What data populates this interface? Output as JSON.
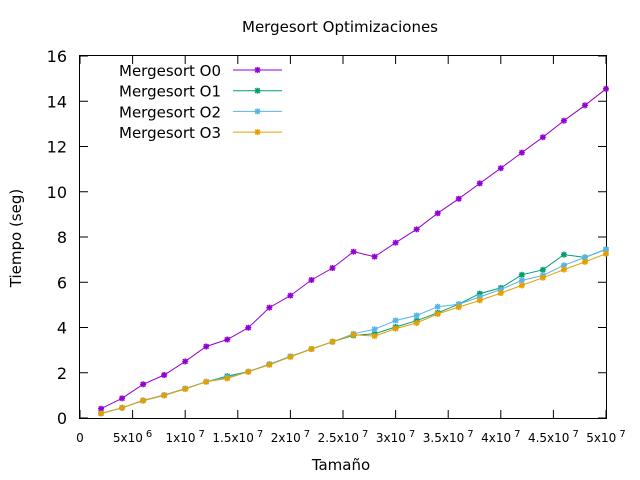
{
  "chart_data": {
    "type": "line",
    "title": "Mergesort Optimizaciones",
    "xlabel": "Tamaño",
    "ylabel": "Tiempo (seg)",
    "xlim": [
      0,
      50000000
    ],
    "ylim": [
      0,
      16
    ],
    "grid": false,
    "legend_position": "top-left",
    "y_ticks": [
      "0",
      "2",
      "4",
      "6",
      "8",
      "10",
      "12",
      "14",
      "16"
    ],
    "y_tick_values": [
      0,
      2,
      4,
      6,
      8,
      10,
      12,
      14,
      16
    ],
    "x_ticks": [
      {
        "value": 0,
        "mantissa": "0",
        "exponent": ""
      },
      {
        "value": 5000000,
        "mantissa": "5x10",
        "exponent": "6"
      },
      {
        "value": 10000000,
        "mantissa": "1x10",
        "exponent": "7"
      },
      {
        "value": 15000000,
        "mantissa": "1.5x10",
        "exponent": "7"
      },
      {
        "value": 20000000,
        "mantissa": "2x10",
        "exponent": "7"
      },
      {
        "value": 25000000,
        "mantissa": "2.5x10",
        "exponent": "7"
      },
      {
        "value": 30000000,
        "mantissa": "3x10",
        "exponent": "7"
      },
      {
        "value": 35000000,
        "mantissa": "3.5x10",
        "exponent": "7"
      },
      {
        "value": 40000000,
        "mantissa": "4x10",
        "exponent": "7"
      },
      {
        "value": 45000000,
        "mantissa": "4.5x10",
        "exponent": "7"
      },
      {
        "value": 50000000,
        "mantissa": "5x10",
        "exponent": "7"
      }
    ],
    "x": [
      2000000,
      4000000,
      6000000,
      8000000,
      10000000,
      12000000,
      14000000,
      16000000,
      18000000,
      20000000,
      22000000,
      24000000,
      26000000,
      28000000,
      30000000,
      32000000,
      34000000,
      36000000,
      38000000,
      40000000,
      42000000,
      44000000,
      46000000,
      48000000,
      50000000
    ],
    "series": [
      {
        "name": "Mergesort O0",
        "color": "#9400d3",
        "values": [
          0.41,
          0.87,
          1.49,
          1.9,
          2.5,
          3.16,
          3.47,
          3.99,
          4.88,
          5.41,
          6.1,
          6.63,
          7.35,
          7.13,
          7.75,
          8.34,
          9.05,
          9.69,
          10.37,
          11.04,
          11.73,
          12.41,
          13.14,
          13.82,
          14.55
        ]
      },
      {
        "name": "Mergesort O1",
        "color": "#009e73",
        "values": [
          0.2,
          0.45,
          0.77,
          1.0,
          1.3,
          1.6,
          1.85,
          2.05,
          2.38,
          2.72,
          3.05,
          3.37,
          3.65,
          3.72,
          4.02,
          4.3,
          4.65,
          5.03,
          5.5,
          5.75,
          6.33,
          6.55,
          7.22,
          7.1,
          7.45
        ]
      },
      {
        "name": "Mergesort O2",
        "color": "#56b4e9",
        "values": [
          0.2,
          0.45,
          0.78,
          1.02,
          1.3,
          1.61,
          1.8,
          2.05,
          2.38,
          2.72,
          3.05,
          3.37,
          3.72,
          3.92,
          4.31,
          4.53,
          4.92,
          5.03,
          5.35,
          5.68,
          6.08,
          6.3,
          6.75,
          7.1,
          7.45
        ]
      },
      {
        "name": "Mergesort O3",
        "color": "#e69f00",
        "values": [
          0.2,
          0.45,
          0.77,
          1.0,
          1.28,
          1.6,
          1.75,
          2.04,
          2.35,
          2.7,
          3.05,
          3.37,
          3.68,
          3.62,
          3.95,
          4.2,
          4.6,
          4.9,
          5.2,
          5.52,
          5.86,
          6.2,
          6.56,
          6.9,
          7.26
        ]
      }
    ]
  }
}
